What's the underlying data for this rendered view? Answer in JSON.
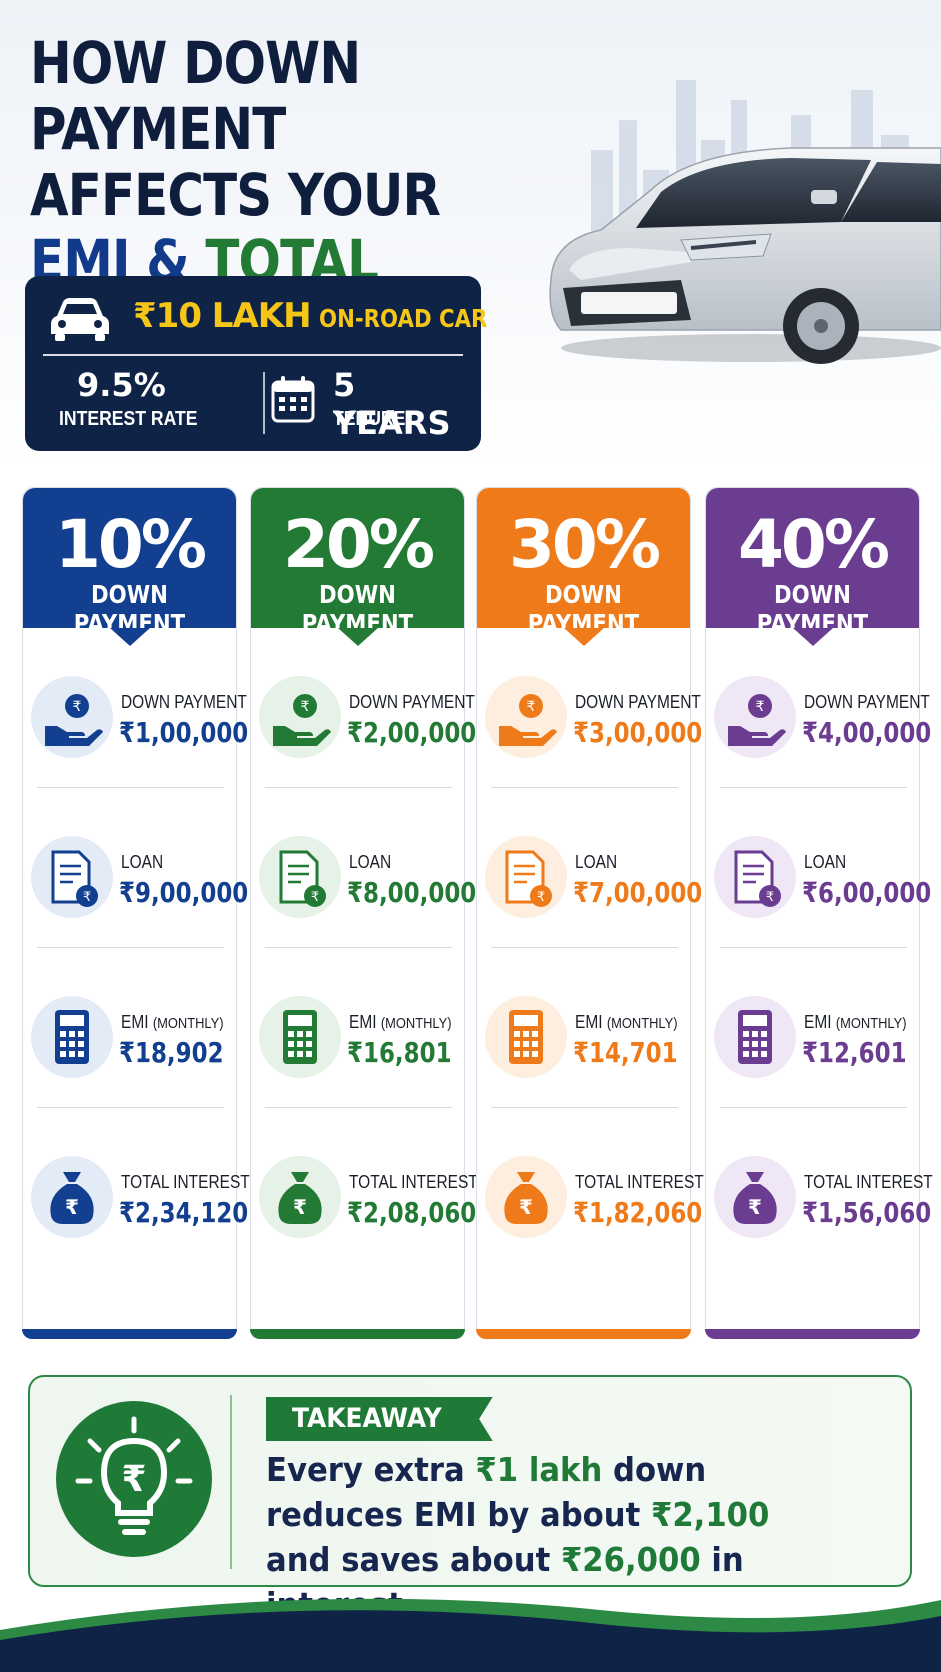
{
  "title": {
    "line1": "HOW DOWN PAYMENT",
    "line2": "AFFECTS YOUR",
    "emi": "EMI",
    "amp": "&",
    "total_interest": "TOTAL INTEREST"
  },
  "summary": {
    "price": "₹10 LAKH",
    "price_suffix": "ON-ROAD CAR",
    "rate_value": "9.5%",
    "rate_label": "INTEREST RATE",
    "tenure_value": "5 YEARS",
    "tenure_label": "TENURE"
  },
  "colors": {
    "blue": "#123f8f",
    "green": "#237a35",
    "orange": "#ee7a1a",
    "purple": "#6a3d91",
    "navy": "#0f2347"
  },
  "row_labels": {
    "down_payment": "DOWN PAYMENT",
    "loan": "LOAN",
    "emi": "EMI",
    "emi_suffix": "(MONTHLY)",
    "total_interest": "TOTAL INTEREST"
  },
  "scenarios": [
    {
      "percent": "10%",
      "label": "DOWN PAYMENT",
      "down_payment": "₹1,00,000",
      "loan": "₹9,00,000",
      "emi": "₹18,902",
      "total_interest": "₹2,34,120"
    },
    {
      "percent": "20%",
      "label": "DOWN PAYMENT",
      "down_payment": "₹2,00,000",
      "loan": "₹8,00,000",
      "emi": "₹16,801",
      "total_interest": "₹2,08,060"
    },
    {
      "percent": "30%",
      "label": "DOWN PAYMENT",
      "down_payment": "₹3,00,000",
      "loan": "₹7,00,000",
      "emi": "₹14,701",
      "total_interest": "₹1,82,060"
    },
    {
      "percent": "40%",
      "label": "DOWN PAYMENT",
      "down_payment": "₹4,00,000",
      "loan": "₹6,00,000",
      "emi": "₹12,601",
      "total_interest": "₹1,56,060"
    }
  ],
  "icons": {
    "down_payment": "hand-coin-icon",
    "loan": "document-rupee-icon",
    "emi": "calculator-icon",
    "total_interest": "money-bag-icon",
    "car": "car-icon",
    "calendar": "calendar-icon",
    "takeaway": "lightbulb-rupee-icon"
  },
  "takeaway": {
    "tag": "TAKEAWAY",
    "t1": "Every extra ",
    "h1": "₹1 lakh",
    "t2": " down",
    "t3": "reduces EMI by about ",
    "h2": "₹2,100",
    "t4": "and saves about ",
    "h3": "₹26,000",
    "t5": " in interest."
  }
}
